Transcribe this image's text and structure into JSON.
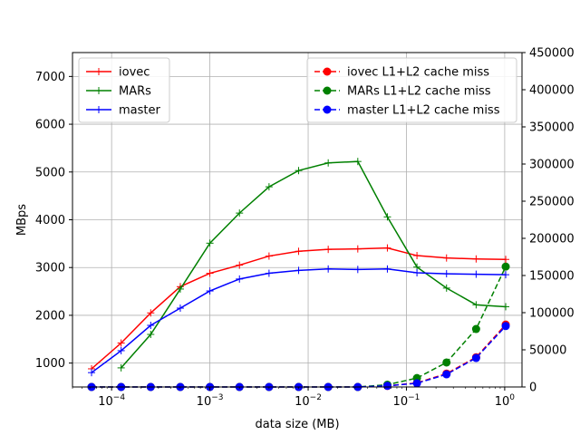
{
  "chart_data": {
    "type": "line",
    "title": "",
    "xlabel": "data size (MB)",
    "ylabel": "MBps",
    "y2label": "",
    "x_scale": "log",
    "xlim": [
      4e-05,
      1.5
    ],
    "ylim": [
      500,
      7500
    ],
    "y2lim": [
      0,
      450000
    ],
    "grid": true,
    "x_ticks": [
      {
        "value": 0.0001,
        "base": "10",
        "exp": "−4"
      },
      {
        "value": 0.001,
        "base": "10",
        "exp": "−3"
      },
      {
        "value": 0.01,
        "base": "10",
        "exp": "−2"
      },
      {
        "value": 0.1,
        "base": "10",
        "exp": "−1"
      },
      {
        "value": 1,
        "base": "10",
        "exp": "0"
      }
    ],
    "y_ticks": [
      {
        "value": 1000,
        "label": "1000"
      },
      {
        "value": 2000,
        "label": "2000"
      },
      {
        "value": 3000,
        "label": "3000"
      },
      {
        "value": 4000,
        "label": "4000"
      },
      {
        "value": 5000,
        "label": "5000"
      },
      {
        "value": 6000,
        "label": "6000"
      },
      {
        "value": 7000,
        "label": "7000"
      }
    ],
    "y2_ticks": [
      {
        "value": 0,
        "label": "0"
      },
      {
        "value": 50000,
        "label": "50000"
      },
      {
        "value": 100000,
        "label": "100000"
      },
      {
        "value": 150000,
        "label": "150000"
      },
      {
        "value": 200000,
        "label": "200000"
      },
      {
        "value": 250000,
        "label": "250000"
      },
      {
        "value": 300000,
        "label": "300000"
      },
      {
        "value": 350000,
        "label": "350000"
      },
      {
        "value": 400000,
        "label": "400000"
      },
      {
        "value": 450000,
        "label": "450000"
      }
    ],
    "series": [
      {
        "name": "iovec",
        "axis": "left",
        "color": "#ff0000",
        "style": "solid",
        "marker": "plus",
        "x": [
          6.25e-05,
          0.000125,
          0.00025,
          0.0005,
          0.001,
          0.002,
          0.004,
          0.008,
          0.016,
          0.032,
          0.064,
          0.128,
          0.256,
          0.512,
          1.024
        ],
        "y": [
          880,
          1420,
          2050,
          2600,
          2880,
          3050,
          3240,
          3340,
          3380,
          3390,
          3410,
          3250,
          3200,
          3180,
          3170
        ]
      },
      {
        "name": "MARs",
        "axis": "left",
        "color": "#008000",
        "style": "solid",
        "marker": "plus",
        "x": [
          0.000125,
          0.00025,
          0.0005,
          0.001,
          0.002,
          0.004,
          0.008,
          0.016,
          0.032,
          0.064,
          0.128,
          0.256,
          0.512,
          1.024
        ],
        "y": [
          900,
          1600,
          2550,
          3510,
          4140,
          4690,
          5030,
          5190,
          5220,
          4060,
          3010,
          2570,
          2220,
          2180
        ]
      },
      {
        "name": "master",
        "axis": "left",
        "color": "#0000ff",
        "style": "solid",
        "marker": "plus",
        "x": [
          6.25e-05,
          0.000125,
          0.00025,
          0.0005,
          0.001,
          0.002,
          0.004,
          0.008,
          0.016,
          0.032,
          0.064,
          0.128,
          0.256,
          0.512,
          1.024
        ],
        "y": [
          800,
          1260,
          1790,
          2150,
          2510,
          2760,
          2880,
          2940,
          2970,
          2960,
          2970,
          2890,
          2870,
          2860,
          2850
        ]
      },
      {
        "name": "iovec L1+L2 cache miss",
        "axis": "right",
        "color": "#ff0000",
        "style": "dashed",
        "marker": "circle",
        "x": [
          6.25e-05,
          0.000125,
          0.00025,
          0.0005,
          0.001,
          0.002,
          0.004,
          0.008,
          0.016,
          0.032,
          0.064,
          0.128,
          0.256,
          0.512,
          1.024
        ],
        "y": [
          0,
          0,
          0,
          0,
          0,
          0,
          0,
          0,
          0,
          0,
          1500,
          5500,
          18000,
          40000,
          84000
        ]
      },
      {
        "name": "MARs L1+L2 cache miss",
        "axis": "right",
        "color": "#008000",
        "style": "dashed",
        "marker": "circle",
        "x": [
          6.25e-05,
          0.000125,
          0.00025,
          0.0005,
          0.001,
          0.002,
          0.004,
          0.008,
          0.016,
          0.032,
          0.064,
          0.128,
          0.256,
          0.512,
          1.024
        ],
        "y": [
          0,
          0,
          0,
          0,
          0,
          0,
          0,
          0,
          0,
          0,
          3000,
          12000,
          33000,
          78000,
          162000
        ]
      },
      {
        "name": "master L1+L2 cache miss",
        "axis": "right",
        "color": "#0000ff",
        "style": "dashed",
        "marker": "circle",
        "x": [
          6.25e-05,
          0.000125,
          0.00025,
          0.0005,
          0.001,
          0.002,
          0.004,
          0.008,
          0.016,
          0.032,
          0.064,
          0.128,
          0.256,
          0.512,
          1.024
        ],
        "y": [
          0,
          0,
          0,
          0,
          0,
          0,
          0,
          0,
          0,
          0,
          1500,
          5000,
          17000,
          39000,
          82000
        ]
      }
    ],
    "legend_left": {
      "placement": "upper-left",
      "entries": [
        "iovec",
        "MARs",
        "master"
      ]
    },
    "legend_right": {
      "placement": "upper-right",
      "entries": [
        "iovec L1+L2 cache miss",
        "MARs L1+L2 cache miss",
        "master L1+L2 cache miss"
      ]
    }
  }
}
